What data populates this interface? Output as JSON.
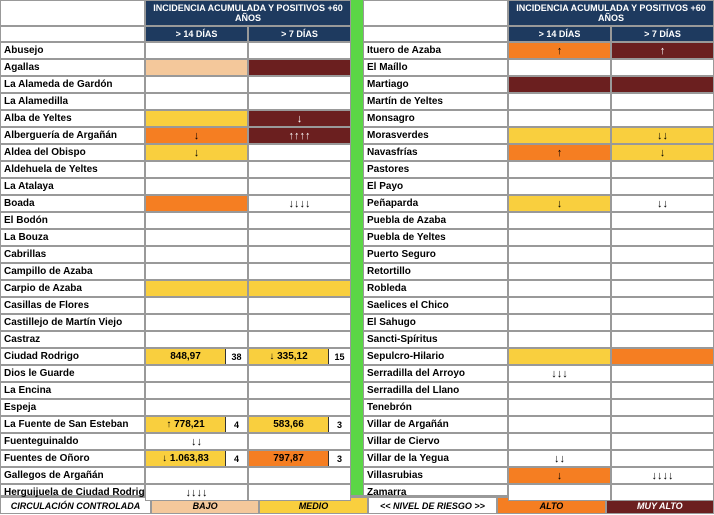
{
  "header_title": "INCIDENCIA ACUMULADA Y POSITIVOS +60 AÑOS",
  "col14": "> 14 DÍAS",
  "col7": "> 7 DÍAS",
  "legend": {
    "ctrl": "CIRCULACIÓN CONTROLADA",
    "bajo": "BAJO",
    "medio": "MEDIO",
    "nivel": "<< NIVEL DE RIESGO >>",
    "alto": "ALTO",
    "muyalto": "MUY ALTO"
  },
  "colors": {
    "white": "#ffffff",
    "bajo": "#f4c89b",
    "medio": "#f9cf3e",
    "alto": "#f57e22",
    "muyalto": "#6b1f1f",
    "header": "#1e3a5f",
    "divider": "#5bd646"
  },
  "left": [
    {
      "n": "Abusejo",
      "c14": {
        "bg": "white"
      },
      "c7": {
        "bg": "white"
      }
    },
    {
      "n": "Agallas",
      "c14": {
        "bg": "bajo"
      },
      "c7": {
        "bg": "muyalto"
      }
    },
    {
      "n": "La Alameda de Gardón",
      "c14": {
        "bg": "white"
      },
      "c7": {
        "bg": "white"
      }
    },
    {
      "n": "La Alamedilla",
      "c14": {
        "bg": "white"
      },
      "c7": {
        "bg": "white"
      }
    },
    {
      "n": "Alba de Yeltes",
      "c14": {
        "bg": "medio"
      },
      "c7": {
        "bg": "muyalto",
        "t": "↓"
      }
    },
    {
      "n": "Alberguería de Argañán",
      "c14": {
        "bg": "alto",
        "t": "↓"
      },
      "c7": {
        "bg": "muyalto",
        "t": "↑↑↑↑"
      }
    },
    {
      "n": "Aldea del Obispo",
      "c14": {
        "bg": "medio",
        "t": "↓"
      },
      "c7": {
        "bg": "white"
      }
    },
    {
      "n": "Aldehuela de Yeltes",
      "c14": {
        "bg": "white"
      },
      "c7": {
        "bg": "white"
      }
    },
    {
      "n": "La Atalaya",
      "c14": {
        "bg": "white"
      },
      "c7": {
        "bg": "white"
      }
    },
    {
      "n": "Boada",
      "c14": {
        "bg": "alto"
      },
      "c7": {
        "bg": "white",
        "t": "↓↓↓↓"
      }
    },
    {
      "n": "El Bodón",
      "c14": {
        "bg": "white"
      },
      "c7": {
        "bg": "white"
      }
    },
    {
      "n": "La Bouza",
      "c14": {
        "bg": "white"
      },
      "c7": {
        "bg": "white"
      }
    },
    {
      "n": "Cabrillas",
      "c14": {
        "bg": "white"
      },
      "c7": {
        "bg": "white"
      }
    },
    {
      "n": "Campillo de Azaba",
      "c14": {
        "bg": "white"
      },
      "c7": {
        "bg": "white"
      }
    },
    {
      "n": "Carpio de Azaba",
      "c14": {
        "bg": "medio"
      },
      "c7": {
        "bg": "medio"
      }
    },
    {
      "n": "Casillas de Flores",
      "c14": {
        "bg": "white"
      },
      "c7": {
        "bg": "white"
      }
    },
    {
      "n": "Castillejo de Martín Viejo",
      "c14": {
        "bg": "white"
      },
      "c7": {
        "bg": "white"
      }
    },
    {
      "n": "Castraz",
      "c14": {
        "bg": "white"
      },
      "c7": {
        "bg": "white"
      }
    },
    {
      "n": "Ciudad Rodrigo",
      "c14": {
        "bg": "medio",
        "t": "848,97",
        "num": "38"
      },
      "c7": {
        "bg": "medio",
        "t": "↓ 335,12",
        "num": "15"
      }
    },
    {
      "n": "Dios le Guarde",
      "c14": {
        "bg": "white"
      },
      "c7": {
        "bg": "white"
      }
    },
    {
      "n": "La Encina",
      "c14": {
        "bg": "white"
      },
      "c7": {
        "bg": "white"
      }
    },
    {
      "n": "Espeja",
      "c14": {
        "bg": "white"
      },
      "c7": {
        "bg": "white"
      }
    },
    {
      "n": "La Fuente de San Esteban",
      "c14": {
        "bg": "medio",
        "t": "↑ 778,21",
        "num": "4"
      },
      "c7": {
        "bg": "medio",
        "t": "583,66",
        "num": "3"
      }
    },
    {
      "n": "Fuenteguinaldo",
      "c14": {
        "bg": "white",
        "t": "↓↓"
      },
      "c7": {
        "bg": "white"
      }
    },
    {
      "n": "Fuentes de Oñoro",
      "c14": {
        "bg": "medio",
        "t": "↓ 1.063,83",
        "num": "4"
      },
      "c7": {
        "bg": "alto",
        "t": "797,87",
        "num": "3"
      }
    },
    {
      "n": "Gallegos de Argañán",
      "c14": {
        "bg": "white"
      },
      "c7": {
        "bg": "white"
      }
    },
    {
      "n": "Herguijuela de Ciudad Rodrigo",
      "c14": {
        "bg": "white",
        "t": "↓↓↓↓"
      },
      "c7": {
        "bg": "white"
      }
    }
  ],
  "right": [
    {
      "n": "Ituero de Azaba",
      "c14": {
        "bg": "alto",
        "t": "↑"
      },
      "c7": {
        "bg": "muyalto",
        "t": "↑"
      }
    },
    {
      "n": "El Maíllo",
      "c14": {
        "bg": "white"
      },
      "c7": {
        "bg": "white"
      }
    },
    {
      "n": "Martiago",
      "c14": {
        "bg": "muyalto"
      },
      "c7": {
        "bg": "muyalto"
      }
    },
    {
      "n": "Martín de Yeltes",
      "c14": {
        "bg": "white"
      },
      "c7": {
        "bg": "white"
      }
    },
    {
      "n": "Monsagro",
      "c14": {
        "bg": "white"
      },
      "c7": {
        "bg": "white"
      }
    },
    {
      "n": "Morasverdes",
      "c14": {
        "bg": "medio"
      },
      "c7": {
        "bg": "medio",
        "t": "↓↓"
      }
    },
    {
      "n": "Navasfrías",
      "c14": {
        "bg": "alto",
        "t": "↑"
      },
      "c7": {
        "bg": "medio",
        "t": "↓"
      }
    },
    {
      "n": "Pastores",
      "c14": {
        "bg": "white"
      },
      "c7": {
        "bg": "white"
      }
    },
    {
      "n": "El Payo",
      "c14": {
        "bg": "white"
      },
      "c7": {
        "bg": "white"
      }
    },
    {
      "n": "Peñaparda",
      "c14": {
        "bg": "medio",
        "t": "↓"
      },
      "c7": {
        "bg": "white",
        "t": "↓↓"
      }
    },
    {
      "n": "Puebla de Azaba",
      "c14": {
        "bg": "white"
      },
      "c7": {
        "bg": "white"
      }
    },
    {
      "n": "Puebla de Yeltes",
      "c14": {
        "bg": "white"
      },
      "c7": {
        "bg": "white"
      }
    },
    {
      "n": "Puerto Seguro",
      "c14": {
        "bg": "white"
      },
      "c7": {
        "bg": "white"
      }
    },
    {
      "n": "Retortillo",
      "c14": {
        "bg": "white"
      },
      "c7": {
        "bg": "white"
      }
    },
    {
      "n": "Robleda",
      "c14": {
        "bg": "white"
      },
      "c7": {
        "bg": "white"
      }
    },
    {
      "n": "Saelices el Chico",
      "c14": {
        "bg": "white"
      },
      "c7": {
        "bg": "white"
      }
    },
    {
      "n": "El Sahugo",
      "c14": {
        "bg": "white"
      },
      "c7": {
        "bg": "white"
      }
    },
    {
      "n": "Sancti-Spíritus",
      "c14": {
        "bg": "white"
      },
      "c7": {
        "bg": "white"
      }
    },
    {
      "n": "Sepulcro-Hilario",
      "c14": {
        "bg": "medio"
      },
      "c7": {
        "bg": "alto"
      }
    },
    {
      "n": "Serradilla del Arroyo",
      "c14": {
        "bg": "white",
        "t": "↓↓↓"
      },
      "c7": {
        "bg": "white"
      }
    },
    {
      "n": "Serradilla del Llano",
      "c14": {
        "bg": "white"
      },
      "c7": {
        "bg": "white"
      }
    },
    {
      "n": "Tenebrón",
      "c14": {
        "bg": "white"
      },
      "c7": {
        "bg": "white"
      }
    },
    {
      "n": "Villar de Argañán",
      "c14": {
        "bg": "white"
      },
      "c7": {
        "bg": "white"
      }
    },
    {
      "n": "Villar de Ciervo",
      "c14": {
        "bg": "white"
      },
      "c7": {
        "bg": "white"
      }
    },
    {
      "n": "Villar de la Yegua",
      "c14": {
        "bg": "white",
        "t": "↓↓"
      },
      "c7": {
        "bg": "white"
      }
    },
    {
      "n": "Villasrubias",
      "c14": {
        "bg": "alto",
        "t": "↓"
      },
      "c7": {
        "bg": "white",
        "t": "↓↓↓↓"
      }
    },
    {
      "n": "Zamarra",
      "c14": {
        "bg": "white"
      },
      "c7": {
        "bg": "white"
      }
    }
  ]
}
